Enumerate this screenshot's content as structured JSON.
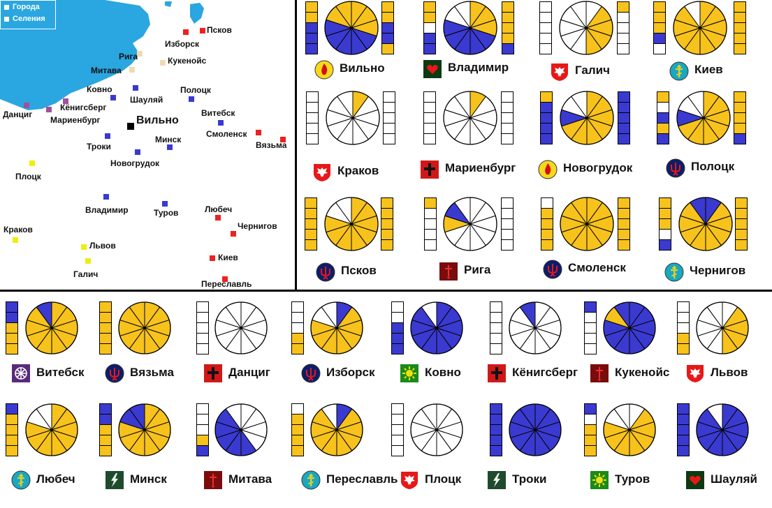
{
  "map": {
    "legend": {
      "cities_label": "Города",
      "villages_label": "Селения"
    },
    "places": [
      {
        "name": "Псков",
        "kind": "city",
        "color": "#ee2020"
      },
      {
        "name": "Изборск",
        "kind": "city",
        "color": "#ee2020"
      },
      {
        "name": "Рига",
        "kind": "city",
        "color": "#eedcb0"
      },
      {
        "name": "Кукенойс",
        "kind": "city",
        "color": "#eedcb0"
      },
      {
        "name": "Митава",
        "kind": "city",
        "color": "#eedcb0"
      },
      {
        "name": "Ковно",
        "kind": "city",
        "color": "#3a3ad0"
      },
      {
        "name": "Шауляй",
        "kind": "city",
        "color": "#3a3ad0"
      },
      {
        "name": "Полоцк",
        "kind": "city",
        "color": "#3a3ad0"
      },
      {
        "name": "Данциг",
        "kind": "city",
        "color": "#a050a0"
      },
      {
        "name": "Кёнигсберг",
        "kind": "city",
        "color": "#a050a0"
      },
      {
        "name": "Мариенбург",
        "kind": "city",
        "color": "#a050a0"
      },
      {
        "name": "Вильно",
        "kind": "capital",
        "color": "#000000"
      },
      {
        "name": "Витебск",
        "kind": "city",
        "color": "#3a3ad0"
      },
      {
        "name": "Смоленск",
        "kind": "city",
        "color": "#ee2020"
      },
      {
        "name": "Вязьма",
        "kind": "city",
        "color": "#ee2020"
      },
      {
        "name": "Минск",
        "kind": "city",
        "color": "#3a3ad0"
      },
      {
        "name": "Троки",
        "kind": "city",
        "color": "#3a3ad0"
      },
      {
        "name": "Новогрудок",
        "kind": "city",
        "color": "#3a3ad0"
      },
      {
        "name": "Плоцк",
        "kind": "city",
        "color": "#eeee10"
      },
      {
        "name": "Владимир",
        "kind": "city",
        "color": "#3a3ad0"
      },
      {
        "name": "Туров",
        "kind": "city",
        "color": "#3a3ad0"
      },
      {
        "name": "Любеч",
        "kind": "city",
        "color": "#ee2020"
      },
      {
        "name": "Чернигов",
        "kind": "city",
        "color": "#ee2020"
      },
      {
        "name": "Краков",
        "kind": "city",
        "color": "#eeee10"
      },
      {
        "name": "Львов",
        "kind": "city",
        "color": "#eeee10"
      },
      {
        "name": "Галич",
        "kind": "city",
        "color": "#eeee10"
      },
      {
        "name": "Киев",
        "kind": "city",
        "color": "#ee2020"
      },
      {
        "name": "Переславль",
        "kind": "city",
        "color": "#ee2020"
      }
    ]
  },
  "colors": {
    "yellow": "#f7c21c",
    "blue": "#3a3ad0",
    "white": "#ffffff",
    "sea": "#2aa6e0",
    "line": "#000000"
  },
  "emblem_types": {
    "flame": "yellow-circle-red-flame-icon",
    "heart": "green-square-red-heart-icon",
    "eagle": "red-shield-white-eagle-icon",
    "cross": "teal-circle-orthodox-cross-icon",
    "black_cross": "red-square-black-cross-icon",
    "trident": "navy-circle-red-trident-icon",
    "sword": "darkred-square-sword-icon",
    "snowflake": "purple-square-snowflake-icon",
    "sun": "green-square-sun-icon",
    "lightning": "darkgreen-square-lightning-icon"
  },
  "cities": [
    {
      "name": "Вильно",
      "emblem": "flame",
      "left_bar": "YYBBB",
      "right_bar": "YYBBY",
      "pie": "YYYBBBBBYY"
    },
    {
      "name": "Владимир",
      "emblem": "heart",
      "left_bar": "YYWBB",
      "right_bar": "YYYYB",
      "pie": "YYYBBBBBWW"
    },
    {
      "name": "Галич",
      "emblem": "eagle",
      "left_bar": "WWWWW",
      "right_bar": "YWWWW",
      "pie": "WYYYYWWWWW"
    },
    {
      "name": "Киев",
      "emblem": "cross",
      "left_bar": "YYYBW",
      "right_bar": "YYYYY",
      "pie": "YYYYYYYYYW"
    },
    {
      "name": "Краков",
      "emblem": "eagle",
      "left_bar": "WWWWW",
      "right_bar": "WWWWW",
      "pie": "YWWWWWWWWW"
    },
    {
      "name": "Мариенбург",
      "emblem": "black_cross",
      "left_bar": "WWWWW",
      "right_bar": "WWWWW",
      "pie": "YWWWWWWWWW"
    },
    {
      "name": "Новогрудок",
      "emblem": "flame",
      "left_bar": "YBBBB",
      "right_bar": "BBBBB",
      "pie": "YYYYYYYBWW"
    },
    {
      "name": "Полоцк",
      "emblem": "trident",
      "left_bar": "YWBYB",
      "right_bar": "YYYYB",
      "pie": "YYYYYYYBWW"
    },
    {
      "name": "Псков",
      "emblem": "trident",
      "left_bar": "YYYYY",
      "right_bar": "YYYYY",
      "pie": "YYYYYYYYWW"
    },
    {
      "name": "Рига",
      "emblem": "sword",
      "left_bar": "YWWWW",
      "right_bar": "WWWWW",
      "pie": "WWWWWWWYBW"
    },
    {
      "name": "Смоленск",
      "emblem": "trident",
      "left_bar": "WYYYY",
      "right_bar": "YYYYY",
      "pie": "YYYYYYYYYY"
    },
    {
      "name": "Чернигов",
      "emblem": "cross",
      "left_bar": "YYYWB",
      "right_bar": "YYYYY",
      "pie": "BYYYYYYYYB"
    },
    {
      "name": "Витебск",
      "emblem": "snowflake",
      "left_bar": "BBYYY",
      "right_bar": "",
      "pie": "YYYYYYYYYB"
    },
    {
      "name": "Вязьма",
      "emblem": "trident",
      "left_bar": "YYYYY",
      "right_bar": "",
      "pie": "YYYYYYYYYY"
    },
    {
      "name": "Данциг",
      "emblem": "black_cross",
      "left_bar": "WWWWW",
      "right_bar": "",
      "pie": "WWWWWWWWWW"
    },
    {
      "name": "Изборск",
      "emblem": "trident",
      "left_bar": "WWWYY",
      "right_bar": "",
      "pie": "BYYYYYYYWW"
    },
    {
      "name": "Ковно",
      "emblem": "sun",
      "left_bar": "WWBBB",
      "right_bar": "",
      "pie": "BBBBBBBBBW"
    },
    {
      "name": "Кёнигсберг",
      "emblem": "black_cross",
      "left_bar": "WWWWW",
      "right_bar": "",
      "pie": "WWWWWWWWWB"
    },
    {
      "name": "Кукенойс",
      "emblem": "sword",
      "left_bar": "BWWWW",
      "right_bar": "",
      "pie": "BBBBBBBBYB"
    },
    {
      "name": "Львов",
      "emblem": "eagle",
      "left_bar": "WWWYY",
      "right_bar": "",
      "pie": "WYYYYWWWWW"
    },
    {
      "name": "Любеч",
      "emblem": "cross",
      "left_bar": "BYYYY",
      "right_bar": "",
      "pie": "YYYYYYYYWW"
    },
    {
      "name": "Минск",
      "emblem": "lightning",
      "left_bar": "BBYYY",
      "right_bar": "",
      "pie": "YYYYYYYYBB"
    },
    {
      "name": "Митава",
      "emblem": "sword",
      "left_bar": "WWWYB",
      "right_bar": "",
      "pie": "WWWWBBBBBW"
    },
    {
      "name": "Переславль",
      "emblem": "cross",
      "left_bar": "WYYYY",
      "right_bar": "",
      "pie": "BYYYYYYYYW"
    },
    {
      "name": "Плоцк",
      "emblem": "eagle",
      "left_bar": "WWWWW",
      "right_bar": "",
      "pie": "WWWWWWWWWW"
    },
    {
      "name": "Троки",
      "emblem": "lightning",
      "left_bar": "BBBBB",
      "right_bar": "",
      "pie": "BBBBBBBBBB"
    },
    {
      "name": "Туров",
      "emblem": "sun",
      "left_bar": "BWYYY",
      "right_bar": "",
      "pie": "WYYYYYYYWW"
    },
    {
      "name": "Шауляй",
      "emblem": "heart",
      "left_bar": "BBBBB",
      "right_bar": "",
      "pie": "BBBBBBBBBW"
    }
  ]
}
